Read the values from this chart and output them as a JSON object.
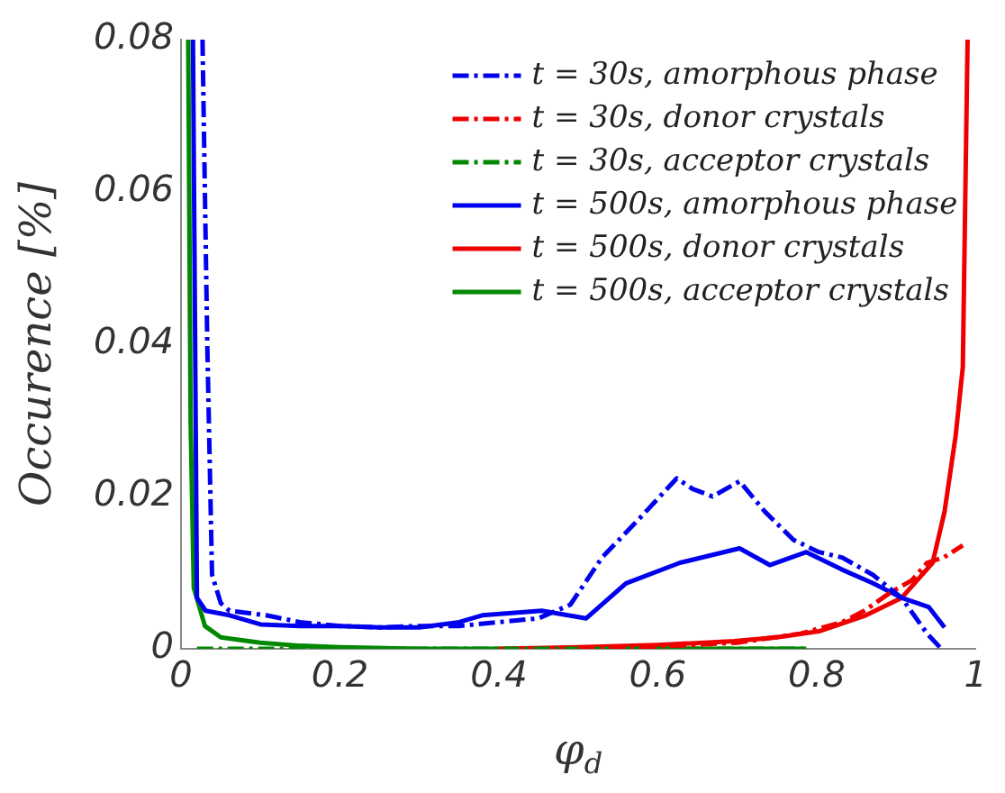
{
  "chart_data": {
    "type": "line",
    "xlabel": "φ$_{d}$",
    "ylabel": "Occurence [%]",
    "xlim": [
      0,
      1
    ],
    "xticks": [
      0,
      0.2,
      0.4,
      0.6,
      0.8,
      1
    ],
    "ylim": [
      0,
      0.08
    ],
    "yticks": [
      0,
      0.02,
      0.04,
      0.06,
      0.08
    ],
    "grid": false,
    "legend": "top right",
    "marker": "none",
    "series": [
      {
        "name": "t = 30s, amorphous phase",
        "color": "#0000ee",
        "line_style": "dashed",
        "x": [
          0.027,
          0.033,
          0.039,
          0.05,
          0.061,
          0.107,
          0.15,
          0.2,
          0.25,
          0.3,
          0.35,
          0.4,
          0.45,
          0.49,
          0.53,
          0.576,
          0.624,
          0.644,
          0.669,
          0.703,
          0.735,
          0.771,
          0.803,
          0.832,
          0.871,
          0.907,
          0.939,
          0.957
        ],
        "values": [
          0.08,
          0.04,
          0.0097,
          0.006,
          0.005,
          0.0044,
          0.0035,
          0.003,
          0.0028,
          0.003,
          0.003,
          0.0035,
          0.004,
          0.0058,
          0.012,
          0.017,
          0.0224,
          0.021,
          0.02,
          0.022,
          0.018,
          0.0143,
          0.0127,
          0.012,
          0.0097,
          0.0067,
          0.002,
          0
        ]
      },
      {
        "name": "t = 30s, donor crystals",
        "color": "#ee0000",
        "line_style": "dashed",
        "x": [
          0.5,
          0.6,
          0.7,
          0.78,
          0.832,
          0.86,
          0.893,
          0.92,
          0.939,
          0.96,
          0.984
        ],
        "values": [
          0,
          0.0003,
          0.0008,
          0.002,
          0.0035,
          0.005,
          0.0074,
          0.009,
          0.0113,
          0.012,
          0.0136
        ]
      },
      {
        "name": "t = 30s, acceptor crystals",
        "color": "#008800",
        "line_style": "dashed",
        "x": [
          0.02,
          0.2,
          0.4,
          0.6,
          0.787
        ],
        "values": [
          0,
          0,
          0,
          0,
          0
        ]
      },
      {
        "name": "t = 500s, amorphous phase",
        "color": "#0000ee",
        "line_style": "solid",
        "x": [
          0.015,
          0.02,
          0.031,
          0.061,
          0.1,
          0.15,
          0.2,
          0.25,
          0.3,
          0.35,
          0.379,
          0.454,
          0.51,
          0.56,
          0.628,
          0.703,
          0.741,
          0.787,
          0.832,
          0.871,
          0.907,
          0.941,
          0.961
        ],
        "values": [
          0.08,
          0.0067,
          0.005,
          0.0044,
          0.0032,
          0.003,
          0.003,
          0.0028,
          0.0028,
          0.0035,
          0.0044,
          0.005,
          0.004,
          0.0086,
          0.0113,
          0.0132,
          0.011,
          0.0127,
          0.0104,
          0.0086,
          0.0067,
          0.0055,
          0.0028
        ]
      },
      {
        "name": "t = 500s, donor crystals",
        "color": "#ee0000",
        "line_style": "solid",
        "x": [
          0.4,
          0.5,
          0.6,
          0.696,
          0.75,
          0.803,
          0.862,
          0.907,
          0.946,
          0.961,
          0.975,
          0.984,
          0.99
        ],
        "values": [
          0,
          0.0002,
          0.0005,
          0.001,
          0.0015,
          0.0023,
          0.0044,
          0.0067,
          0.0113,
          0.018,
          0.028,
          0.037,
          0.08
        ]
      },
      {
        "name": "t = 500s, acceptor crystals",
        "color": "#008800",
        "line_style": "solid",
        "x": [
          0.009,
          0.012,
          0.016,
          0.03,
          0.05,
          0.1,
          0.15,
          0.2,
          0.3,
          0.5,
          0.787
        ],
        "values": [
          0.08,
          0.03,
          0.008,
          0.003,
          0.0015,
          0.0008,
          0.0004,
          0.0002,
          0,
          0,
          0
        ]
      }
    ]
  }
}
